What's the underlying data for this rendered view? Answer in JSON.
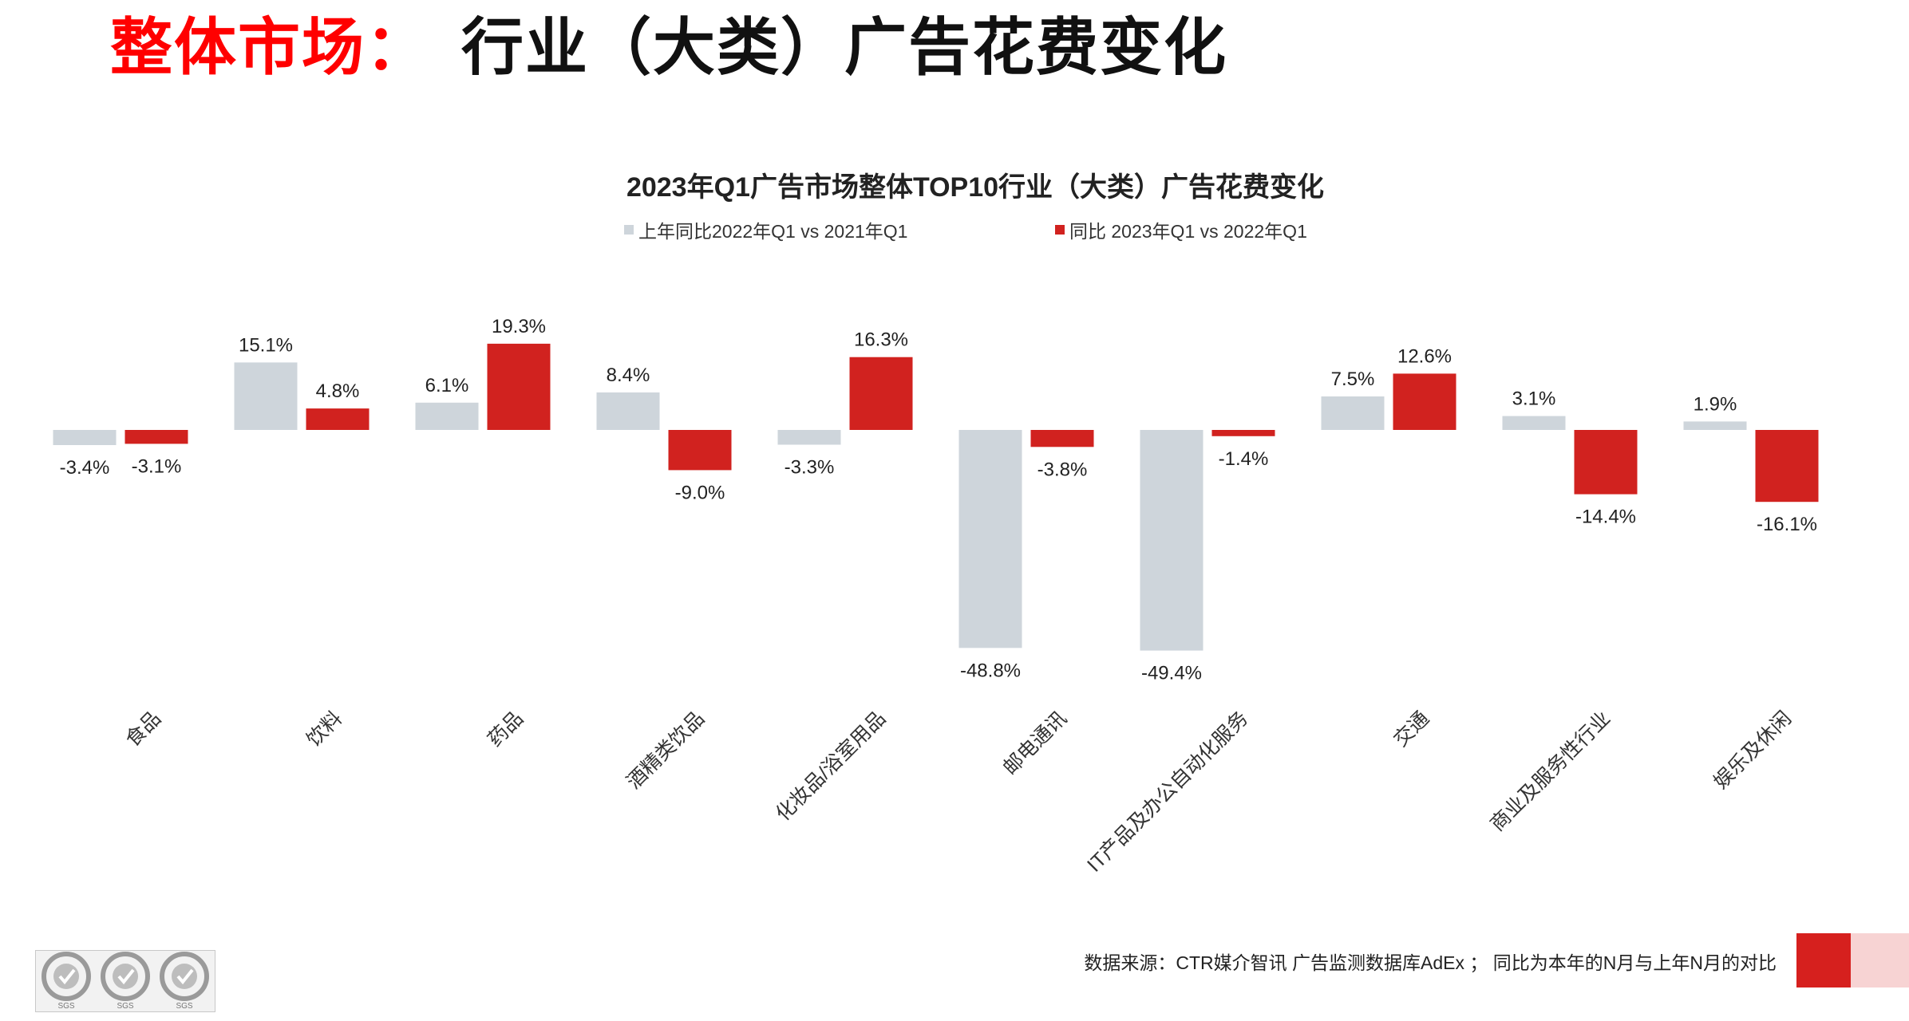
{
  "page": {
    "title_red": "整体市场：",
    "title_black": "行业（大类）广告花费变化"
  },
  "footer": {
    "source": "数据来源：CTR媒介智讯 广告监测数据库AdEx ； 同比为本年的N月与上年N月的对比"
  },
  "logos": {
    "mark_text": "SGS",
    "count": 3
  },
  "colors": {
    "prev": "#ced5db",
    "curr": "#d1221f",
    "title_red": "#ff0000"
  },
  "chart_data": {
    "type": "bar",
    "title": "2023年Q1广告市场整体TOP10行业（大类）广告花费变化",
    "legend_position": "top-center",
    "categories": [
      "食品",
      "饮料",
      "药品",
      "酒精类饮品",
      "化妆品/浴室用品",
      "邮电通讯",
      "IT产品及办公自动化服务",
      "交通",
      "商业及服务性行业",
      "娱乐及休闲"
    ],
    "series": [
      {
        "name": "上年同比2022年Q1  vs  2021年Q1",
        "color": "#ced5db",
        "values": [
          -3.4,
          15.1,
          6.1,
          8.4,
          -3.3,
          -48.8,
          -49.4,
          7.5,
          3.1,
          1.9
        ],
        "labels": [
          "-3.4%",
          "15.1%",
          "6.1%",
          "8.4%",
          "-3.3%",
          "-48.8%",
          "-49.4%",
          "7.5%",
          "3.1%",
          "1.9%"
        ]
      },
      {
        "name": "同比 2023年Q1  vs  2022年Q1",
        "color": "#d1221f",
        "values": [
          -3.1,
          4.8,
          19.3,
          -9.0,
          16.3,
          -3.8,
          -1.4,
          12.6,
          -14.4,
          -16.1
        ],
        "labels": [
          "-3.1%",
          "4.8%",
          "19.3%",
          "-9.0%",
          "16.3%",
          "-3.8%",
          "-1.4%",
          "12.6%",
          "-14.4%",
          "-16.1%"
        ]
      }
    ],
    "xlabel": "",
    "ylabel": "",
    "ylim": [
      -50,
      20
    ],
    "grid": false,
    "value_unit": "%"
  }
}
